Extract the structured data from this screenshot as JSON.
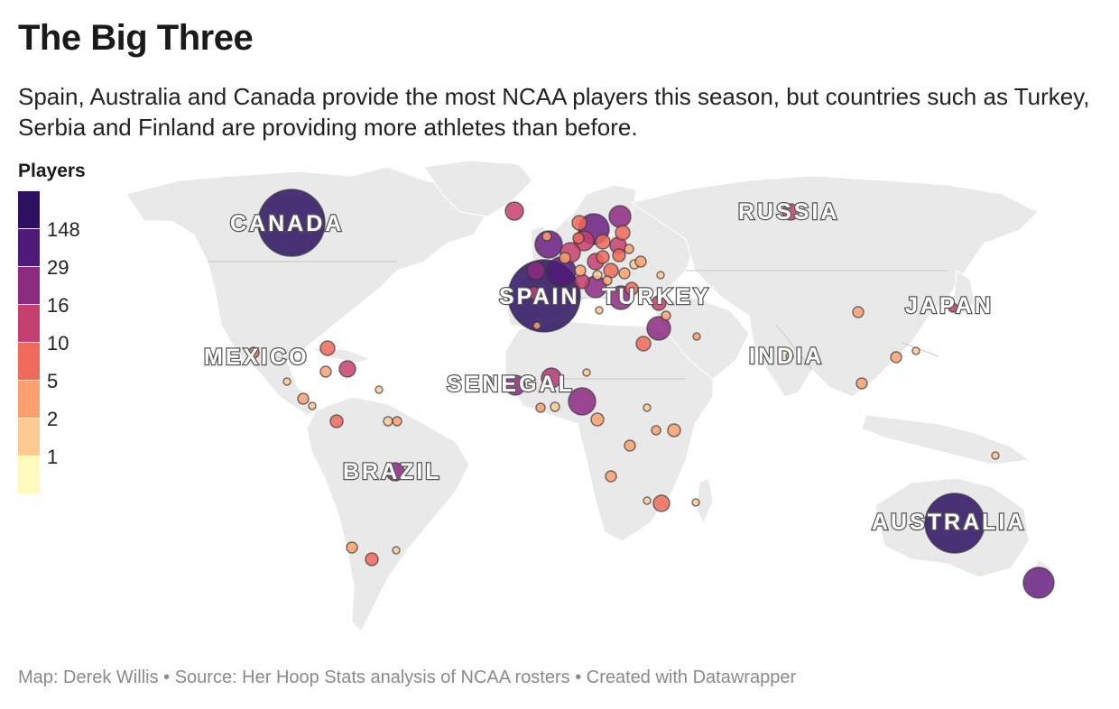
{
  "title": "The Big Three",
  "subtitle": "Spain, Australia and Canada provide the most NCAA players this season, but countries such as Turkey, Serbia and Finland are providing more athletes than before.",
  "legend": {
    "title": "Players",
    "colors": [
      "#2d1160",
      "#4f1b7a",
      "#8c2981",
      "#c53f6e",
      "#ef6a5b",
      "#fca06f",
      "#fdc991",
      "#fefbbd"
    ],
    "labels": [
      "148",
      "29",
      "16",
      "10",
      "5",
      "2",
      "1"
    ]
  },
  "footer": "Map: Derek Willis • Source: Her Hoop Stats analysis of NCAA rosters • Created with Datawrapper",
  "map_labels": {
    "canada": "CANADA",
    "russia": "RUSSIA",
    "spain": "SPAIN",
    "turkey": "TURKEY",
    "japan": "JAPAN",
    "mexico": "MEXICO",
    "india": "INDIA",
    "senegal": "SENEGAL",
    "brazil": "BRAZIL",
    "australia": "AUSTRALIA"
  }
}
